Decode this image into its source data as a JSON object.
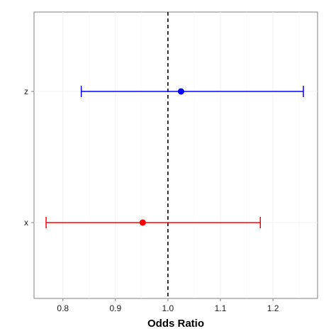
{
  "chart_data": {
    "type": "scatter",
    "subtype": "forest-plot",
    "title": "",
    "xlabel": "Odds Ratio",
    "ylabel": "",
    "xlim": [
      0.745,
      1.285
    ],
    "x_ticks": [
      0.8,
      0.9,
      1.0,
      1.1,
      1.2
    ],
    "x_tick_labels": [
      "0.8",
      "0.9",
      "1.0",
      "1.1",
      "1.2"
    ],
    "categories": [
      "x",
      "z"
    ],
    "reference_line": {
      "x": 1.0,
      "style": "dashed",
      "color": "#000000"
    },
    "grid": true,
    "legend": "none",
    "series": [
      {
        "category": "z",
        "estimate": 1.025,
        "lower": 0.835,
        "upper": 1.258,
        "color": "#0000ff"
      },
      {
        "category": "x",
        "estimate": 0.952,
        "lower": 0.768,
        "upper": 1.176,
        "color": "#ff0000"
      }
    ]
  }
}
